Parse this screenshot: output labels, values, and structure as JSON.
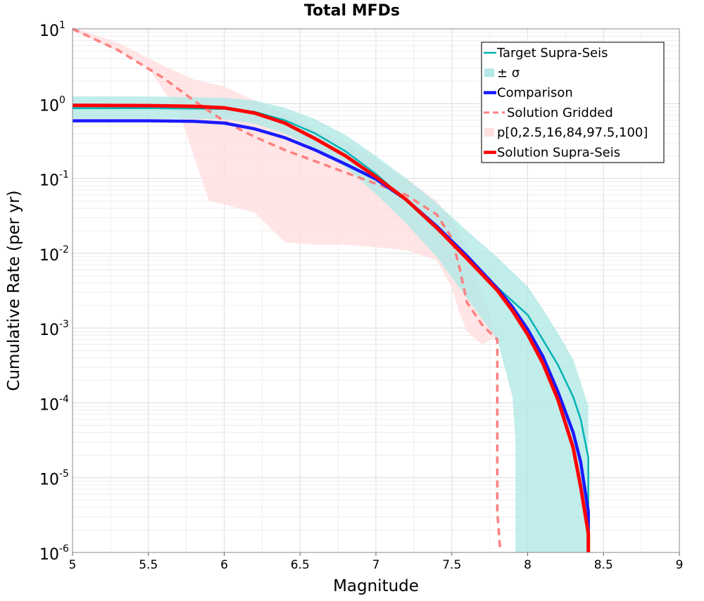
{
  "chart_data": {
    "type": "line",
    "title": "Total MFDs",
    "xlabel": "Magnitude",
    "ylabel": "Cumulative Rate (per yr)",
    "xlim": [
      5,
      9
    ],
    "ylim": [
      1e-06,
      10
    ],
    "yscale": "log",
    "grid": true,
    "legend_position": "top-right",
    "x_ticks": [
      "5",
      "5.5",
      "6",
      "6.5",
      "7",
      "7.5",
      "8",
      "8.5",
      "9"
    ],
    "y_ticks": [
      {
        "base": "10",
        "exp": "1"
      },
      {
        "base": "10",
        "exp": "0"
      },
      {
        "base": "10",
        "exp": "-1"
      },
      {
        "base": "10",
        "exp": "-2"
      },
      {
        "base": "10",
        "exp": "-3"
      },
      {
        "base": "10",
        "exp": "-4"
      },
      {
        "base": "10",
        "exp": "-5"
      },
      {
        "base": "10",
        "exp": "-6"
      }
    ],
    "colors": {
      "target": "#00b3b3",
      "sigma_band": "#b2e8e6",
      "comparison": "#1a1aff",
      "gridded": "#ff7f7f",
      "percentile_band": "#ffdede",
      "supra": "#ff0000"
    },
    "series": [
      {
        "name": "Target Supra-Seis",
        "x": [
          5.0,
          5.5,
          6.0,
          6.2,
          6.4,
          6.6,
          6.8,
          7.0,
          7.2,
          7.4,
          7.6,
          7.8,
          8.0,
          8.1,
          8.2,
          8.3,
          8.35,
          8.4,
          8.4
        ],
        "y": [
          0.87,
          0.87,
          0.85,
          0.78,
          0.6,
          0.4,
          0.23,
          0.115,
          0.05,
          0.021,
          0.0085,
          0.0035,
          0.0015,
          0.0007,
          0.00032,
          0.00012,
          6e-05,
          1.85e-05,
          1e-06
        ]
      },
      {
        "name": "± σ",
        "x": [
          5.0,
          5.5,
          6.0,
          6.2,
          6.4,
          6.6,
          6.8,
          7.0,
          7.2,
          7.4,
          7.6,
          7.8,
          8.0,
          8.1,
          8.2,
          8.3,
          8.4,
          8.4,
          8.4,
          8.3,
          8.2,
          8.1,
          8.0,
          7.92,
          7.92,
          7.9,
          7.8,
          7.6,
          7.4,
          7.2,
          7.0,
          6.8,
          6.6,
          6.4,
          6.2,
          6.0,
          5.5,
          5.0
        ],
        "y": [
          1.25,
          1.25,
          1.2,
          1.1,
          0.88,
          0.62,
          0.38,
          0.2,
          0.1,
          0.047,
          0.02,
          0.0088,
          0.0036,
          0.0018,
          0.00085,
          0.00038,
          9e-05,
          3e-05,
          1e-06,
          1e-06,
          1e-06,
          1e-06,
          1e-06,
          1e-06,
          3e-05,
          0.00012,
          0.0007,
          0.0025,
          0.009,
          0.025,
          0.062,
          0.14,
          0.25,
          0.4,
          0.54,
          0.62,
          0.63,
          0.63
        ]
      },
      {
        "name": "Comparison",
        "x": [
          5.0,
          5.5,
          5.8,
          6.0,
          6.2,
          6.4,
          6.6,
          6.8,
          7.0,
          7.2,
          7.4,
          7.6,
          7.8,
          7.9,
          8.0,
          8.1,
          8.2,
          8.3,
          8.35,
          8.4,
          8.4
        ],
        "y": [
          0.59,
          0.59,
          0.58,
          0.55,
          0.46,
          0.35,
          0.24,
          0.155,
          0.098,
          0.052,
          0.023,
          0.0092,
          0.0034,
          0.0019,
          0.00096,
          0.00042,
          0.00014,
          4e-05,
          1.6e-05,
          3.5e-06,
          1e-06
        ]
      },
      {
        "name": "Solution Gridded",
        "x": [
          5.0,
          5.3,
          5.6,
          5.8,
          6.0,
          6.2,
          6.4,
          6.6,
          6.8,
          7.0,
          7.2,
          7.4,
          7.5,
          7.55,
          7.6,
          7.7,
          7.8,
          7.8,
          7.82
        ],
        "y": [
          10,
          5.2,
          2.2,
          1.1,
          0.58,
          0.36,
          0.24,
          0.17,
          0.12,
          0.085,
          0.06,
          0.033,
          0.016,
          0.0065,
          0.0022,
          0.0011,
          0.0007,
          3.5e-06,
          1e-06
        ]
      },
      {
        "name": "p[0,2.5,16,84,97.5,100]",
        "x": [
          5.0,
          5.3,
          5.6,
          5.8,
          6.0,
          6.2,
          6.4,
          6.6,
          6.8,
          7.0,
          7.2,
          7.4,
          7.5,
          7.6,
          7.7,
          7.8,
          7.7,
          7.6,
          7.55,
          7.5,
          7.4,
          7.2,
          7.0,
          6.8,
          6.6,
          6.4,
          6.2,
          6.0,
          5.9,
          5.8,
          5.7,
          5.6,
          5.5,
          5.3,
          5.0
        ],
        "y": [
          10.5,
          6.5,
          3.2,
          2.1,
          1.7,
          1.1,
          0.72,
          0.46,
          0.3,
          0.18,
          0.1,
          0.05,
          0.028,
          0.012,
          0.0028,
          0.0008,
          0.0006,
          0.0009,
          0.0016,
          0.0035,
          0.008,
          0.011,
          0.012,
          0.013,
          0.013,
          0.014,
          0.035,
          0.045,
          0.05,
          0.2,
          0.8,
          1.5,
          3.0,
          5.0,
          9.5
        ]
      },
      {
        "name": "Solution Supra-Seis",
        "x": [
          5.0,
          5.5,
          5.8,
          6.0,
          6.2,
          6.4,
          6.6,
          6.8,
          7.0,
          7.2,
          7.4,
          7.6,
          7.8,
          7.9,
          8.0,
          8.1,
          8.2,
          8.3,
          8.35,
          8.4,
          8.4
        ],
        "y": [
          0.95,
          0.94,
          0.92,
          0.88,
          0.75,
          0.55,
          0.34,
          0.2,
          0.105,
          0.052,
          0.022,
          0.0085,
          0.0032,
          0.0017,
          0.00082,
          0.00034,
          0.00011,
          2.5e-05,
          7.5e-06,
          1.8e-06,
          1e-06
        ]
      }
    ]
  }
}
